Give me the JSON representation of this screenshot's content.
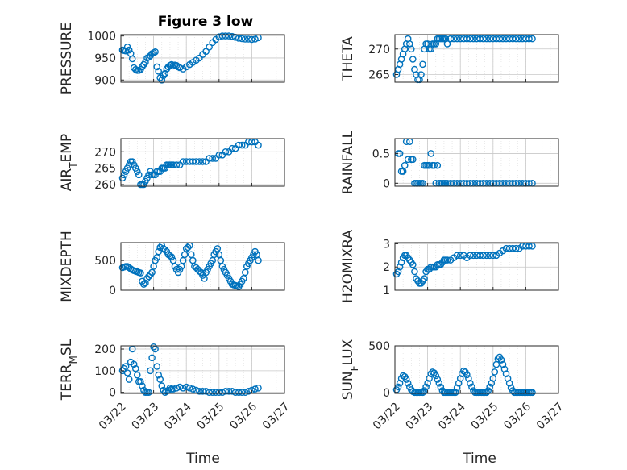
{
  "figure": {
    "title": "Figure 3 low",
    "xlabel": "Time",
    "colors": {
      "marker": "#0072bd",
      "grid": "#c8c8c8",
      "axis": "#262626",
      "background": "#ffffff"
    }
  },
  "chart_data": [
    {
      "type": "scatter",
      "panel": "pressure",
      "ylabel": "PRESSURE",
      "ylabel_sub": "",
      "ylim": [
        895,
        1003
      ],
      "yticks": [
        900,
        950,
        1000
      ],
      "xlim": [
        0,
        5
      ],
      "x": [
        0.05,
        0.1,
        0.15,
        0.2,
        0.25,
        0.3,
        0.35,
        0.4,
        0.45,
        0.5,
        0.55,
        0.6,
        0.65,
        0.7,
        0.75,
        0.8,
        0.85,
        0.9,
        0.95,
        1.0,
        1.05,
        1.1,
        1.15,
        1.2,
        1.25,
        1.3,
        1.35,
        1.4,
        1.45,
        1.5,
        1.55,
        1.6,
        1.65,
        1.7,
        1.75,
        1.8,
        1.9,
        2.0,
        2.1,
        2.2,
        2.3,
        2.4,
        2.5,
        2.6,
        2.7,
        2.8,
        2.9,
        3.0,
        3.1,
        3.2,
        3.3,
        3.4,
        3.5,
        3.6,
        3.7,
        3.8,
        3.9,
        4.0,
        4.1,
        4.2
      ],
      "y": [
        968,
        967,
        966,
        975,
        968,
        960,
        948,
        928,
        924,
        922,
        922,
        924,
        930,
        935,
        940,
        950,
        952,
        955,
        960,
        962,
        964,
        930,
        920,
        905,
        900,
        910,
        915,
        925,
        930,
        933,
        935,
        932,
        934,
        933,
        930,
        928,
        925,
        930,
        935,
        940,
        945,
        950,
        958,
        965,
        975,
        985,
        992,
        998,
        1000,
        1000,
        1000,
        999,
        997,
        995,
        994,
        993,
        993,
        992,
        993,
        996
      ]
    },
    {
      "type": "scatter",
      "panel": "theta",
      "ylabel": "THETA",
      "ylabel_sub": "",
      "ylim": [
        263.5,
        272.8
      ],
      "yticks": [
        265,
        270
      ],
      "xlim": [
        0,
        5
      ],
      "x": [
        0.05,
        0.1,
        0.15,
        0.2,
        0.25,
        0.3,
        0.35,
        0.4,
        0.45,
        0.5,
        0.55,
        0.6,
        0.65,
        0.7,
        0.75,
        0.8,
        0.85,
        0.9,
        0.95,
        1.0,
        1.05,
        1.1,
        1.15,
        1.2,
        1.25,
        1.3,
        1.35,
        1.4,
        1.45,
        1.5,
        1.55,
        1.6,
        1.7,
        1.8,
        1.9,
        2.0,
        2.1,
        2.2,
        2.3,
        2.4,
        2.5,
        2.6,
        2.7,
        2.8,
        2.9,
        3.0,
        3.1,
        3.2,
        3.3,
        3.4,
        3.5,
        3.6,
        3.7,
        3.8,
        3.9,
        4.0,
        4.1,
        4.2
      ],
      "y": [
        265,
        266,
        267,
        268,
        269,
        270,
        271,
        272,
        271,
        270,
        268,
        266,
        265,
        264,
        264,
        265,
        267,
        270,
        271,
        271,
        270,
        270,
        271,
        271,
        271,
        272,
        272,
        272,
        272,
        272,
        272,
        271,
        272,
        272,
        272,
        272,
        272,
        272,
        272,
        272,
        272,
        272,
        272,
        272,
        272,
        272,
        272,
        272,
        272,
        272,
        272,
        272,
        272,
        272,
        272,
        272,
        272,
        272
      ]
    },
    {
      "type": "scatter",
      "panel": "air_temp",
      "ylabel": "AIR",
      "ylabel_sub": "T",
      "ylabel_tail": "EMP",
      "ylim": [
        259.5,
        274
      ],
      "yticks": [
        260,
        265,
        270
      ],
      "xlim": [
        0,
        5
      ],
      "x": [
        0.05,
        0.1,
        0.15,
        0.2,
        0.25,
        0.3,
        0.35,
        0.4,
        0.45,
        0.5,
        0.55,
        0.6,
        0.65,
        0.7,
        0.75,
        0.8,
        0.85,
        0.9,
        0.95,
        1.0,
        1.05,
        1.1,
        1.15,
        1.2,
        1.25,
        1.3,
        1.35,
        1.4,
        1.45,
        1.5,
        1.55,
        1.6,
        1.7,
        1.8,
        1.9,
        2.0,
        2.1,
        2.2,
        2.3,
        2.4,
        2.5,
        2.6,
        2.7,
        2.8,
        2.9,
        3.0,
        3.1,
        3.2,
        3.3,
        3.4,
        3.5,
        3.6,
        3.7,
        3.8,
        3.9,
        4.0,
        4.1,
        4.2
      ],
      "y": [
        262,
        263,
        264,
        265,
        266,
        267,
        267,
        266,
        265,
        264,
        263,
        260,
        260,
        260,
        261,
        262,
        263,
        264,
        263,
        263,
        263,
        264,
        264,
        264,
        265,
        265,
        265,
        266,
        266,
        266,
        266,
        266,
        266,
        266,
        267,
        267,
        267,
        267,
        267,
        267,
        267,
        267,
        268,
        268,
        268,
        269,
        269,
        270,
        270,
        271,
        271,
        272,
        272,
        272,
        273,
        273,
        273,
        272
      ]
    },
    {
      "type": "scatter",
      "panel": "rainfall",
      "ylabel": "RAINFALL",
      "ylabel_sub": "",
      "ylim": [
        -0.05,
        0.75
      ],
      "yticks": [
        0,
        0.5
      ],
      "xlim": [
        0,
        5
      ],
      "x": [
        0.1,
        0.15,
        0.2,
        0.25,
        0.3,
        0.35,
        0.4,
        0.45,
        0.5,
        0.55,
        0.6,
        0.65,
        0.7,
        0.75,
        0.8,
        0.85,
        0.9,
        0.95,
        1.0,
        1.05,
        1.1,
        1.15,
        1.2,
        1.25,
        1.3,
        1.35,
        1.4,
        1.45,
        1.5,
        1.55,
        1.6,
        1.7,
        1.8,
        1.9,
        2.0,
        2.1,
        2.2,
        2.3,
        2.4,
        2.5,
        2.6,
        2.7,
        2.8,
        2.9,
        3.0,
        3.1,
        3.2,
        3.3,
        3.4,
        3.5,
        3.6,
        3.7,
        3.8,
        3.9,
        4.0,
        4.1,
        4.2
      ],
      "y": [
        0.5,
        0.5,
        0.2,
        0.2,
        0.3,
        0.7,
        0.4,
        0.7,
        0.4,
        0.4,
        0.0,
        0.0,
        0.0,
        0.0,
        0.0,
        0.0,
        0.3,
        0.3,
        0.3,
        0.3,
        0.5,
        0.3,
        0.3,
        0.0,
        0.3,
        0.0,
        0.0,
        0.0,
        0.0,
        0.0,
        0.0,
        0.0,
        0.0,
        0.0,
        0.0,
        0.0,
        0.0,
        0.0,
        0.0,
        0.0,
        0.0,
        0.0,
        0.0,
        0.0,
        0.0,
        0.0,
        0.0,
        0.0,
        0.0,
        0.0,
        0.0,
        0.0,
        0.0,
        0.0,
        0.0,
        0.0,
        0.0
      ]
    },
    {
      "type": "scatter",
      "panel": "mixdepth",
      "ylabel": "MIXDEPTH",
      "ylabel_sub": "",
      "ylim": [
        0,
        800
      ],
      "yticks": [
        0,
        500
      ],
      "xlim": [
        0,
        5
      ],
      "x": [
        0.05,
        0.1,
        0.15,
        0.2,
        0.25,
        0.3,
        0.35,
        0.4,
        0.45,
        0.5,
        0.55,
        0.6,
        0.65,
        0.7,
        0.75,
        0.8,
        0.85,
        0.9,
        0.95,
        1.0,
        1.05,
        1.1,
        1.15,
        1.2,
        1.25,
        1.3,
        1.35,
        1.4,
        1.45,
        1.5,
        1.55,
        1.6,
        1.65,
        1.7,
        1.75,
        1.8,
        1.85,
        1.9,
        1.95,
        2.0,
        2.05,
        2.1,
        2.15,
        2.2,
        2.25,
        2.3,
        2.35,
        2.4,
        2.45,
        2.5,
        2.55,
        2.6,
        2.65,
        2.7,
        2.75,
        2.8,
        2.85,
        2.9,
        2.95,
        3.0,
        3.05,
        3.1,
        3.15,
        3.2,
        3.25,
        3.3,
        3.35,
        3.4,
        3.45,
        3.5,
        3.55,
        3.6,
        3.65,
        3.7,
        3.75,
        3.8,
        3.85,
        3.9,
        3.95,
        4.0,
        4.05,
        4.1,
        4.15,
        4.2
      ],
      "y": [
        380,
        390,
        400,
        400,
        380,
        360,
        340,
        330,
        320,
        310,
        300,
        290,
        150,
        100,
        120,
        200,
        230,
        260,
        300,
        400,
        500,
        550,
        650,
        720,
        750,
        700,
        680,
        650,
        600,
        580,
        560,
        500,
        400,
        350,
        300,
        350,
        400,
        500,
        600,
        700,
        720,
        750,
        600,
        500,
        400,
        380,
        350,
        320,
        300,
        250,
        200,
        300,
        350,
        400,
        450,
        500,
        600,
        650,
        700,
        600,
        500,
        400,
        350,
        300,
        250,
        200,
        150,
        100,
        90,
        80,
        70,
        60,
        100,
        150,
        200,
        300,
        400,
        450,
        500,
        550,
        600,
        650,
        600,
        500
      ]
    },
    {
      "type": "scatter",
      "panel": "h2omixra",
      "ylabel": "H2OMIXRA",
      "ylabel_sub": "",
      "ylim": [
        1,
        3.05
      ],
      "yticks": [
        1,
        2,
        3
      ],
      "xlim": [
        0,
        5
      ],
      "x": [
        0.05,
        0.1,
        0.15,
        0.2,
        0.25,
        0.3,
        0.35,
        0.4,
        0.45,
        0.5,
        0.55,
        0.6,
        0.65,
        0.7,
        0.75,
        0.8,
        0.85,
        0.9,
        0.95,
        1.0,
        1.05,
        1.1,
        1.15,
        1.2,
        1.25,
        1.3,
        1.35,
        1.4,
        1.45,
        1.5,
        1.55,
        1.6,
        1.7,
        1.8,
        1.9,
        2.0,
        2.1,
        2.2,
        2.3,
        2.4,
        2.5,
        2.6,
        2.7,
        2.8,
        2.9,
        3.0,
        3.1,
        3.2,
        3.3,
        3.4,
        3.5,
        3.6,
        3.7,
        3.8,
        3.9,
        4.0,
        4.1,
        4.2
      ],
      "y": [
        1.7,
        1.8,
        2.0,
        2.2,
        2.4,
        2.5,
        2.5,
        2.4,
        2.3,
        2.2,
        2.1,
        1.8,
        1.5,
        1.4,
        1.3,
        1.3,
        1.4,
        1.5,
        1.8,
        1.9,
        1.9,
        2.0,
        2.0,
        2.0,
        2.0,
        2.1,
        2.1,
        2.1,
        2.2,
        2.3,
        2.3,
        2.3,
        2.3,
        2.4,
        2.5,
        2.5,
        2.5,
        2.4,
        2.5,
        2.5,
        2.5,
        2.5,
        2.5,
        2.5,
        2.5,
        2.5,
        2.5,
        2.6,
        2.7,
        2.8,
        2.8,
        2.8,
        2.8,
        2.8,
        2.9,
        2.9,
        2.9,
        2.9
      ]
    },
    {
      "type": "scatter",
      "panel": "terr_msl",
      "ylabel": "TERR",
      "ylabel_sub": "M",
      "ylabel_tail": "SL",
      "ylim": [
        -5,
        215
      ],
      "yticks": [
        0,
        100,
        200
      ],
      "xlim": [
        0,
        5
      ],
      "x": [
        0.05,
        0.1,
        0.15,
        0.2,
        0.25,
        0.3,
        0.35,
        0.4,
        0.45,
        0.5,
        0.55,
        0.6,
        0.65,
        0.7,
        0.75,
        0.8,
        0.85,
        0.9,
        0.95,
        1.0,
        1.05,
        1.1,
        1.15,
        1.2,
        1.25,
        1.3,
        1.35,
        1.4,
        1.45,
        1.5,
        1.55,
        1.6,
        1.7,
        1.8,
        1.9,
        2.0,
        2.1,
        2.2,
        2.3,
        2.4,
        2.5,
        2.6,
        2.7,
        2.8,
        2.9,
        3.0,
        3.1,
        3.2,
        3.3,
        3.4,
        3.5,
        3.6,
        3.7,
        3.8,
        3.9,
        4.0,
        4.1,
        4.2
      ],
      "y": [
        100,
        110,
        120,
        90,
        60,
        140,
        200,
        130,
        110,
        80,
        50,
        50,
        30,
        10,
        0,
        0,
        0,
        100,
        160,
        210,
        200,
        120,
        80,
        60,
        30,
        10,
        0,
        5,
        10,
        20,
        15,
        15,
        20,
        25,
        20,
        25,
        20,
        15,
        10,
        5,
        5,
        5,
        0,
        0,
        0,
        0,
        0,
        5,
        5,
        5,
        0,
        0,
        0,
        0,
        5,
        10,
        15,
        20
      ]
    },
    {
      "type": "scatter",
      "panel": "sun_flux",
      "ylabel": "SUN",
      "ylabel_sub": "F",
      "ylabel_tail": "LUX",
      "ylim": [
        -10,
        500
      ],
      "yticks": [
        0,
        500
      ],
      "xlim": [
        0,
        5
      ],
      "x": [
        0.05,
        0.1,
        0.15,
        0.2,
        0.25,
        0.3,
        0.35,
        0.4,
        0.45,
        0.5,
        0.55,
        0.6,
        0.65,
        0.7,
        0.75,
        0.8,
        0.85,
        0.9,
        0.95,
        1.0,
        1.05,
        1.1,
        1.15,
        1.2,
        1.25,
        1.3,
        1.35,
        1.4,
        1.45,
        1.5,
        1.55,
        1.6,
        1.65,
        1.7,
        1.75,
        1.8,
        1.85,
        1.9,
        1.95,
        2.0,
        2.05,
        2.1,
        2.15,
        2.2,
        2.25,
        2.3,
        2.35,
        2.4,
        2.45,
        2.5,
        2.55,
        2.6,
        2.65,
        2.7,
        2.75,
        2.8,
        2.85,
        2.9,
        2.95,
        3.0,
        3.05,
        3.1,
        3.15,
        3.2,
        3.25,
        3.3,
        3.35,
        3.4,
        3.45,
        3.5,
        3.55,
        3.6,
        3.65,
        3.7,
        3.75,
        3.8,
        3.85,
        3.9,
        3.95,
        4.0,
        4.05,
        4.1,
        4.15,
        4.2
      ],
      "y": [
        30,
        60,
        100,
        150,
        180,
        170,
        140,
        100,
        60,
        30,
        10,
        0,
        0,
        0,
        0,
        0,
        0,
        20,
        60,
        100,
        150,
        200,
        220,
        210,
        180,
        140,
        100,
        60,
        20,
        0,
        0,
        0,
        0,
        0,
        0,
        0,
        0,
        50,
        100,
        150,
        200,
        230,
        220,
        190,
        150,
        100,
        60,
        20,
        0,
        0,
        0,
        0,
        0,
        0,
        0,
        0,
        20,
        60,
        100,
        150,
        220,
        300,
        360,
        380,
        350,
        300,
        250,
        200,
        150,
        100,
        50,
        20,
        0,
        0,
        0,
        0,
        0,
        0,
        0,
        0,
        0,
        0,
        0,
        0
      ]
    }
  ],
  "x_axis": {
    "tick_labels": [
      "03/22",
      "03/23",
      "03/24",
      "03/25",
      "03/26",
      "03/27"
    ],
    "tick_values": [
      0,
      1,
      2,
      3,
      4,
      5
    ]
  }
}
